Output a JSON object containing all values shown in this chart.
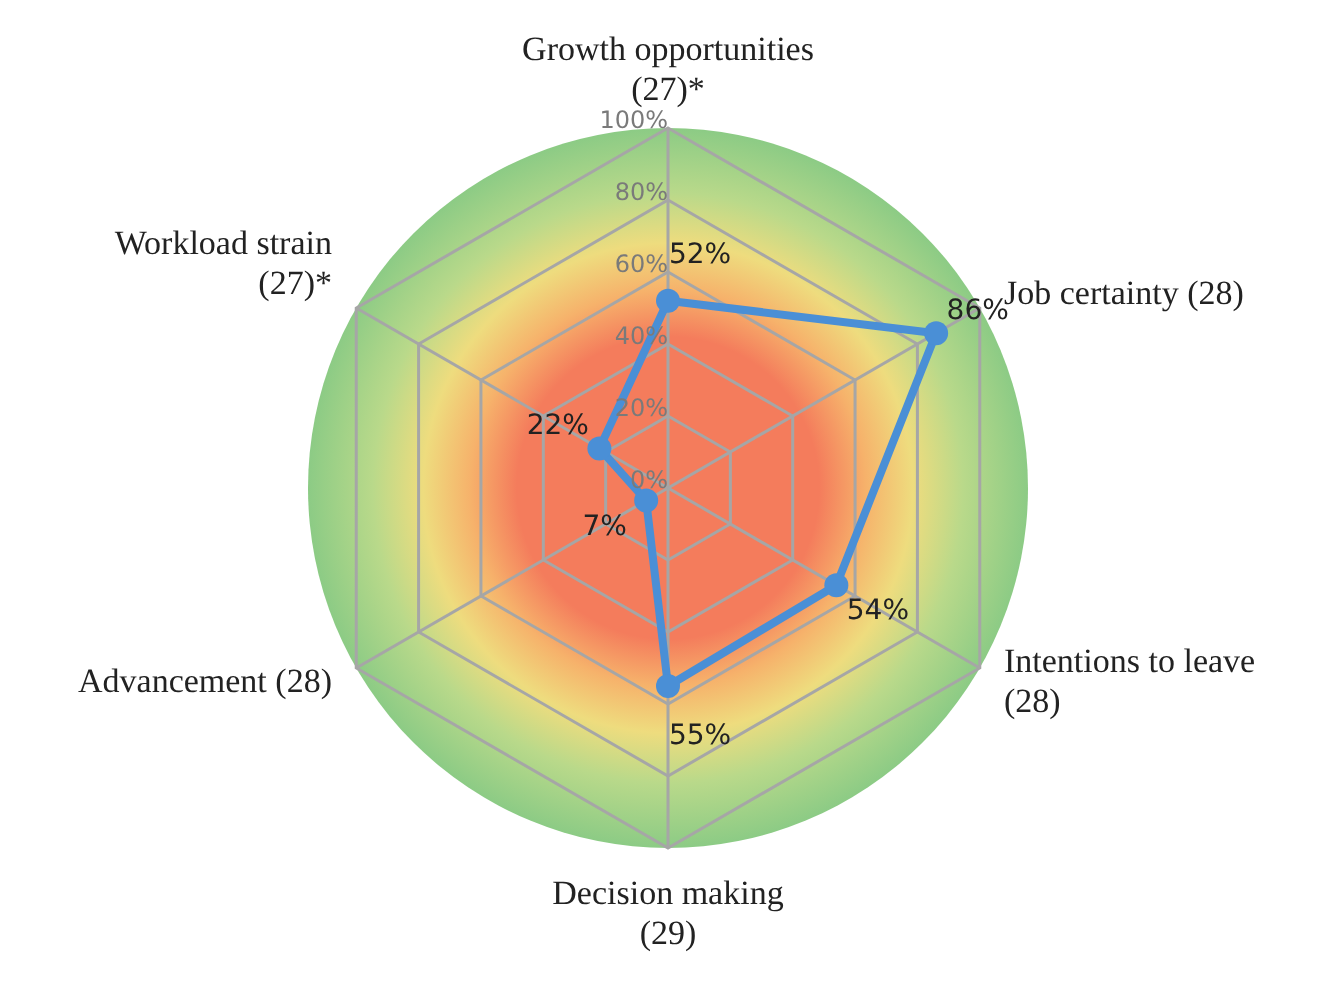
{
  "chart_data": {
    "type": "radar",
    "categories": [
      "Growth opportunities\n(27)*",
      "Job certainty (28)",
      "Intentions to leave\n(28)",
      "Decision making\n(29)",
      "Advancement (28)",
      "Workload strain\n(27)*"
    ],
    "series": [
      {
        "color": "#4a8fd6",
        "values": [
          52,
          86,
          54,
          55,
          7,
          22
        ],
        "value_labels": [
          "52%",
          "86%",
          "54%",
          "55%",
          "7%",
          "22%"
        ]
      }
    ],
    "ylim": [
      0,
      100
    ],
    "yticks": [
      {
        "value": 0,
        "label": "0%"
      },
      {
        "value": 20,
        "label": "20%"
      },
      {
        "value": 40,
        "label": "40%"
      },
      {
        "value": 60,
        "label": "60%"
      },
      {
        "value": 80,
        "label": "80%"
      },
      {
        "value": 100,
        "label": "100%"
      }
    ],
    "grid": true,
    "marker": "circle",
    "legend": false
  }
}
